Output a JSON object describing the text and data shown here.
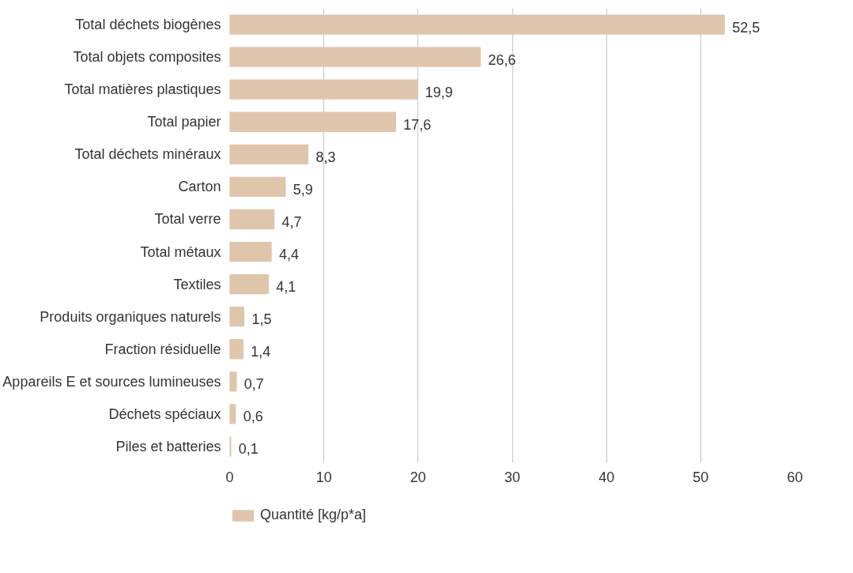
{
  "chart_data": {
    "type": "bar",
    "orientation": "horizontal",
    "categories": [
      "Total déchets biogènes",
      "Total objets composites",
      "Total matières plastiques",
      "Total papier",
      "Total déchets minéraux",
      "Carton",
      "Total verre",
      "Total métaux",
      "Textiles",
      "Produits organiques naturels",
      "Fraction résiduelle",
      "Appareils E et sources lumineuses",
      "Déchets spéciaux",
      "Piles et batteries"
    ],
    "series": [
      {
        "name": "Quantité [kg/p*a]",
        "color": "#e0c5ad",
        "values": [
          52.5,
          26.6,
          19.9,
          17.6,
          8.3,
          5.9,
          4.7,
          4.4,
          4.1,
          1.5,
          1.4,
          0.7,
          0.6,
          0.1
        ]
      }
    ],
    "value_labels": [
      "52,5",
      "26,6",
      "19,9",
      "17,6",
      "8,3",
      "5,9",
      "4,7",
      "4,4",
      "4,1",
      "1,5",
      "1,4",
      "0,7",
      "0,6",
      "0,1"
    ],
    "xlim": [
      0,
      60
    ],
    "xticks": [
      0,
      10,
      20,
      30,
      40,
      50,
      60
    ],
    "grid": "x",
    "legend": "bottom"
  }
}
